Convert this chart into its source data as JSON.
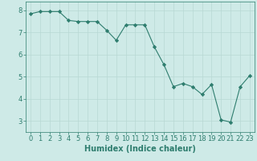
{
  "x": [
    0,
    1,
    2,
    3,
    4,
    5,
    6,
    7,
    8,
    9,
    10,
    11,
    12,
    13,
    14,
    15,
    16,
    17,
    18,
    19,
    20,
    21,
    22,
    23
  ],
  "y": [
    7.85,
    7.95,
    7.95,
    7.95,
    7.55,
    7.5,
    7.5,
    7.5,
    7.1,
    6.65,
    7.35,
    7.35,
    7.35,
    6.35,
    5.55,
    4.55,
    4.7,
    4.55,
    4.2,
    4.65,
    3.05,
    2.95,
    4.55,
    5.05
  ],
  "line_color": "#2e7d6e",
  "marker": "D",
  "marker_size": 2.2,
  "bg_color": "#ceeae7",
  "grid_color": "#b8d8d4",
  "xlabel": "Humidex (Indice chaleur)",
  "xlabel_fontsize": 7,
  "tick_fontsize": 6,
  "ylim": [
    2.5,
    8.4
  ],
  "xlim": [
    -0.5,
    23.5
  ],
  "yticks": [
    3,
    4,
    5,
    6,
    7,
    8
  ],
  "xticks": [
    0,
    1,
    2,
    3,
    4,
    5,
    6,
    7,
    8,
    9,
    10,
    11,
    12,
    13,
    14,
    15,
    16,
    17,
    18,
    19,
    20,
    21,
    22,
    23
  ]
}
